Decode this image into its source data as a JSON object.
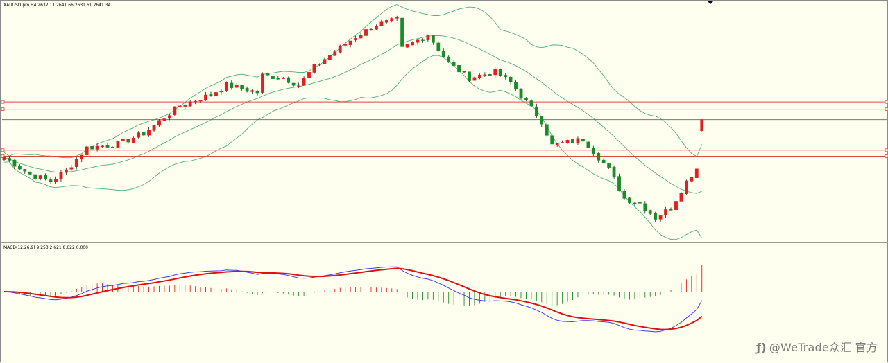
{
  "header": {
    "symbol_line": "XAUUSD.pro,H4  2632.11 2641.66 2631.61 2641.34"
  },
  "macd": {
    "label": "MACD(12,26,9) 9.253 2.621 8.622 0.000"
  },
  "watermark": {
    "icon": "wetrade-logo-icon",
    "icon_glyph": "ƒ)",
    "text": "@WeTrade众汇 官方"
  },
  "colors": {
    "background": "#fffff0",
    "bull": "#e02020",
    "bear": "#1a8a2a",
    "bands": "#4caf7a",
    "hlines": "#e04545",
    "macd_signal": "#e01010",
    "macd_line": "#3b3bf0"
  },
  "chart_data": [
    {
      "type": "candlestick",
      "title": "XAUUSD.pro,H4",
      "open_high_low_close_last": [
        2632.11,
        2641.66,
        2631.61,
        2641.34
      ],
      "candle_count": 136,
      "path_control_points": [
        [
          0,
          2610
        ],
        [
          5,
          2596
        ],
        [
          9,
          2590
        ],
        [
          12,
          2599
        ],
        [
          16,
          2618
        ],
        [
          22,
          2621
        ],
        [
          27,
          2630
        ],
        [
          34,
          2653
        ],
        [
          40,
          2662
        ],
        [
          43,
          2670
        ],
        [
          49,
          2664
        ],
        [
          50,
          2678
        ],
        [
          54,
          2676
        ],
        [
          57,
          2670
        ],
        [
          60,
          2685
        ],
        [
          63,
          2695
        ],
        [
          68,
          2710
        ],
        [
          72,
          2720
        ],
        [
          76,
          2724
        ],
        [
          77,
          2700
        ],
        [
          82,
          2712
        ],
        [
          86,
          2688
        ],
        [
          90,
          2676
        ],
        [
          95,
          2681
        ],
        [
          98,
          2672
        ],
        [
          104,
          2640
        ],
        [
          106,
          2620
        ],
        [
          112,
          2625
        ],
        [
          117,
          2600
        ],
        [
          120,
          2576
        ],
        [
          123,
          2572
        ],
        [
          126,
          2560
        ],
        [
          129,
          2568
        ],
        [
          132,
          2590
        ],
        [
          134,
          2601
        ],
        [
          135,
          2606
        ]
      ],
      "bollinger_bands": {
        "period": 20,
        "deviations": 2
      },
      "horizontal_levels": [
        2656,
        2650,
        2641.34,
        2616,
        2611
      ]
    },
    {
      "type": "histogram+line",
      "title": "MACD(12,26,9)",
      "values": {
        "macd": 9.253,
        "signal": 2.621,
        "histogram": 8.622,
        "level": 0.0
      },
      "series": [
        {
          "name": "MACD",
          "values_note": ""
        },
        {
          "name": "Signal",
          "values_note": ""
        }
      ]
    }
  ]
}
